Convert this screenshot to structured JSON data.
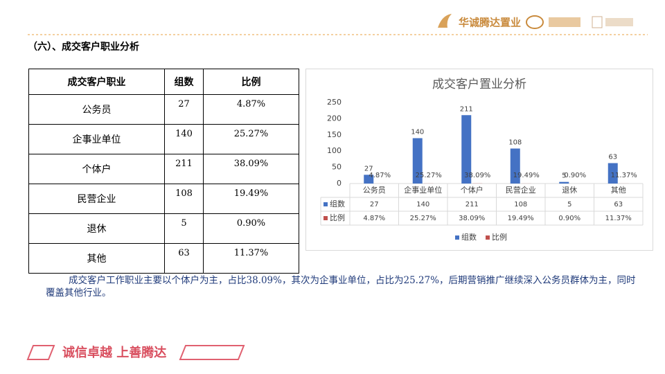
{
  "header": {
    "logo": "华诚腾达置业"
  },
  "section_title": "（六）、成交客户职业分析",
  "table": {
    "header": [
      "成交客户职业",
      "组数",
      "比例"
    ],
    "rows": [
      [
        "公务员",
        "27",
        "4.87%"
      ],
      [
        "企事业单位",
        "140",
        "25.27%"
      ],
      [
        "个体户",
        "211",
        "38.09%"
      ],
      [
        "民营企业",
        "108",
        "19.49%"
      ],
      [
        "退休",
        "5",
        "0.90%"
      ],
      [
        "其他",
        "63",
        "11.37%"
      ]
    ]
  },
  "chart_data": {
    "type": "bar",
    "title": "成交客户置业分析",
    "categories": [
      "公务员",
      "企事业单位",
      "个体户",
      "民营企业",
      "退休",
      "其他"
    ],
    "series": [
      {
        "name": "组数",
        "color": "#4472c4",
        "values": [
          27,
          140,
          211,
          108,
          5,
          63
        ]
      },
      {
        "name": "比例",
        "color": "#c0504d",
        "values": [
          0.0487,
          0.2527,
          0.3809,
          0.1949,
          0.009,
          0.1137
        ],
        "value_labels": [
          "4.87%",
          "25.27%",
          "38.09%",
          "19.49%",
          "0.90%",
          "11.37%"
        ]
      }
    ],
    "ylim": [
      0,
      250
    ],
    "yticks": [
      0,
      50,
      100,
      150,
      200,
      250
    ],
    "grid": false,
    "legend": "bottom"
  },
  "summary": "成交客户工作职业主要以个体户为主，占比38.09%，其次为企事业单位，占比为25.27%，后期营销推广继续深入公务员群体为主，同时覆盖其他行业。",
  "footer": {
    "slogan": "诚信卓越 上善腾达"
  }
}
